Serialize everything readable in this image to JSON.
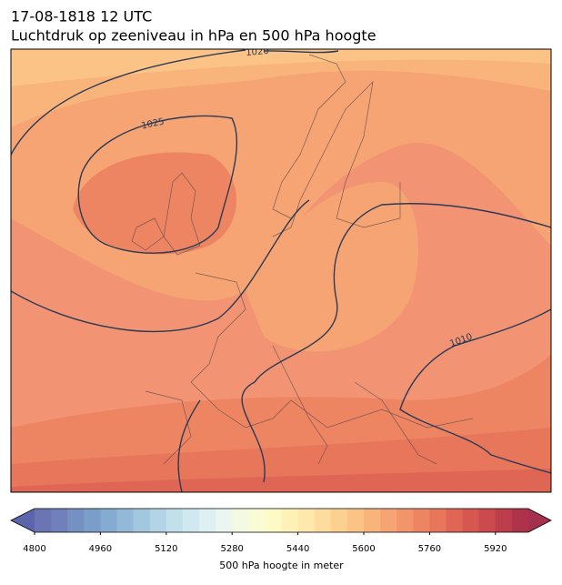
{
  "title": "17-08-1818 12 UTC",
  "subtitle": "Luchtdruk op zeeniveau in hPa en 500 hPa hoogte",
  "isobar_labels": [
    "1020",
    "1025",
    "1010"
  ],
  "colorbar": {
    "label": "500 hPa hoogte in meter",
    "lim": [
      4800,
      6000
    ],
    "ticks": [
      4800,
      4960,
      5120,
      5280,
      5440,
      5600,
      5760,
      5920
    ],
    "extend_colors": [
      "#5a65ab",
      "#a5304d"
    ],
    "colors": [
      "#6b75b4",
      "#6f80bb",
      "#7590c3",
      "#7b9dca",
      "#86abd1",
      "#94b9d8",
      "#a3c7df",
      "#b2d4e6",
      "#c1e0ec",
      "#d0e9f0",
      "#def0f2",
      "#eaf6ef",
      "#f3f9e3",
      "#f9fbd4",
      "#fdfac6",
      "#fef2b9",
      "#fee8ab",
      "#fddc9e",
      "#fcd091",
      "#fbc386",
      "#f9b47b",
      "#f6a473",
      "#f2956a",
      "#ed8562",
      "#e7765b",
      "#df6655",
      "#d55750",
      "#ca4a4d",
      "#bd3e4b",
      "#ae3249"
    ]
  }
}
